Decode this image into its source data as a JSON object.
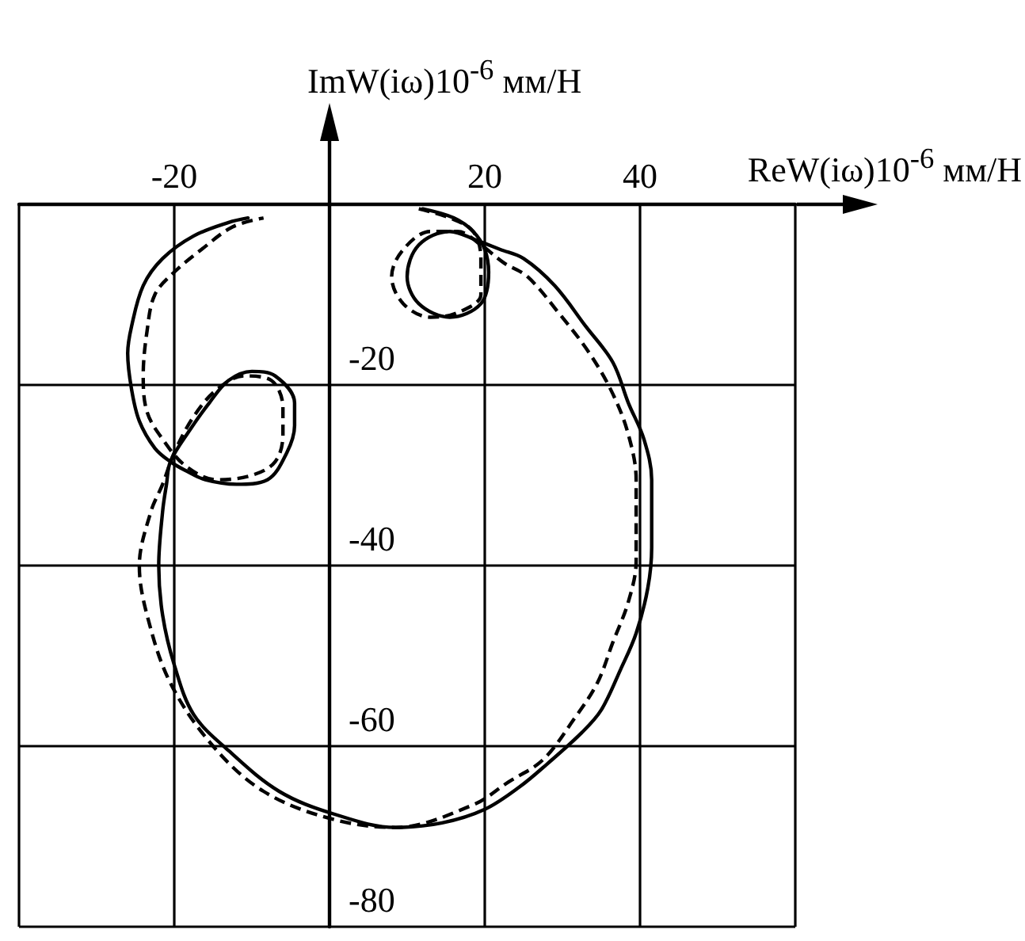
{
  "chart_data": {
    "type": "line",
    "xlabel": "ReW(iω)10$^{-6}$ мм/Н",
    "ylabel": "ImW(iω)10$^{-6}$ мм/Н",
    "xlim": [
      -40,
      60
    ],
    "ylim": [
      -80,
      0
    ],
    "xticks": [
      {
        "value": -40,
        "label": null
      },
      -20,
      {
        "value": 0,
        "label": null
      },
      20,
      40,
      {
        "value": 60,
        "label": null
      }
    ],
    "yticks": [
      -80,
      -60,
      -40,
      -20,
      {
        "value": 0,
        "label": null
      }
    ],
    "grid": true,
    "marker": "none",
    "series": [
      {
        "color": "#000000",
        "line_style": "solid",
        "x": [
          12,
          16,
          18.5,
          20,
          20.5,
          19.5,
          15.5,
          11.5,
          10,
          11.5,
          15.5,
          19,
          22,
          25,
          29,
          33,
          36.5,
          38.5,
          40.5,
          41.5,
          41.5,
          41.5,
          41,
          39.5,
          37.5,
          35,
          32.5,
          28,
          24.5,
          20,
          14.5,
          8.5,
          0.5,
          -6.5,
          -13,
          -17.5,
          -20,
          -21.5,
          -22,
          -21.5,
          -21,
          -20.5,
          -18,
          -15.5,
          -13,
          -10,
          -7,
          -4.5,
          -4.5,
          -5.5,
          -8,
          -12,
          -16,
          -18.5,
          -20.5,
          -22.5,
          -24.5,
          -25.5,
          -26,
          -25.5,
          -24,
          -21.5,
          -17.5,
          -13,
          -10.5
        ],
        "values": [
          -0.5,
          -1.5,
          -3,
          -5,
          -7.5,
          -11,
          -12.5,
          -11,
          -8,
          -4.5,
          -3,
          -4,
          -5,
          -6,
          -9,
          -13.5,
          -17.5,
          -22,
          -26,
          -30.5,
          -34,
          -38,
          -42.5,
          -47.5,
          -51.5,
          -56,
          -58.5,
          -62,
          -64.5,
          -67,
          -68.5,
          -69,
          -67.5,
          -65,
          -60.5,
          -56.5,
          -51,
          -45.5,
          -40,
          -34,
          -31,
          -28.5,
          -25,
          -22,
          -19.5,
          -18.5,
          -19,
          -22,
          -24.5,
          -27.5,
          -30.5,
          -31,
          -30.5,
          -29.5,
          -28.5,
          -27,
          -24,
          -20.5,
          -16.5,
          -13.5,
          -9,
          -6,
          -3.5,
          -2,
          -1.5
        ]
      },
      {
        "color": "#000000",
        "line_style": "dashed",
        "x": [
          11.5,
          15.5,
          18.5,
          19.5,
          19.5,
          16.5,
          13,
          9.5,
          8,
          9.5,
          13,
          16.5,
          19.5,
          22.5,
          25.5,
          29.5,
          33.5,
          36.5,
          38.5,
          39.5,
          39.5,
          39.5,
          38.5,
          36.5,
          34.5,
          31.5,
          27.5,
          23,
          18.5,
          8.5,
          0,
          -8.5,
          -15,
          -20.5,
          -23.5,
          -24.5,
          -23,
          -21.5,
          -20,
          -17.5,
          -14.5,
          -11,
          -7.5,
          -6,
          -6,
          -7,
          -10,
          -14.5,
          -18.5,
          -21.5,
          -23.5,
          -24,
          -23.5,
          -22.5,
          -20,
          -16.5,
          -12.5,
          -8.5
        ],
        "values": [
          -0.5,
          -1.5,
          -3,
          -6,
          -10,
          -12,
          -12.5,
          -11,
          -8,
          -5,
          -3,
          -3,
          -4.5,
          -6.5,
          -8,
          -12,
          -16.5,
          -21,
          -25.5,
          -30.5,
          -34.5,
          -39.5,
          -44,
          -48.5,
          -53,
          -57,
          -61.5,
          -64,
          -66.5,
          -69,
          -68,
          -65,
          -60,
          -53,
          -45.5,
          -40,
          -34,
          -31,
          -27.5,
          -23.5,
          -20.5,
          -19,
          -19.5,
          -22.5,
          -25.5,
          -28.5,
          -30,
          -30.5,
          -29,
          -26,
          -23,
          -19,
          -14,
          -10,
          -7.5,
          -5,
          -2.5,
          -1.5
        ]
      }
    ]
  }
}
